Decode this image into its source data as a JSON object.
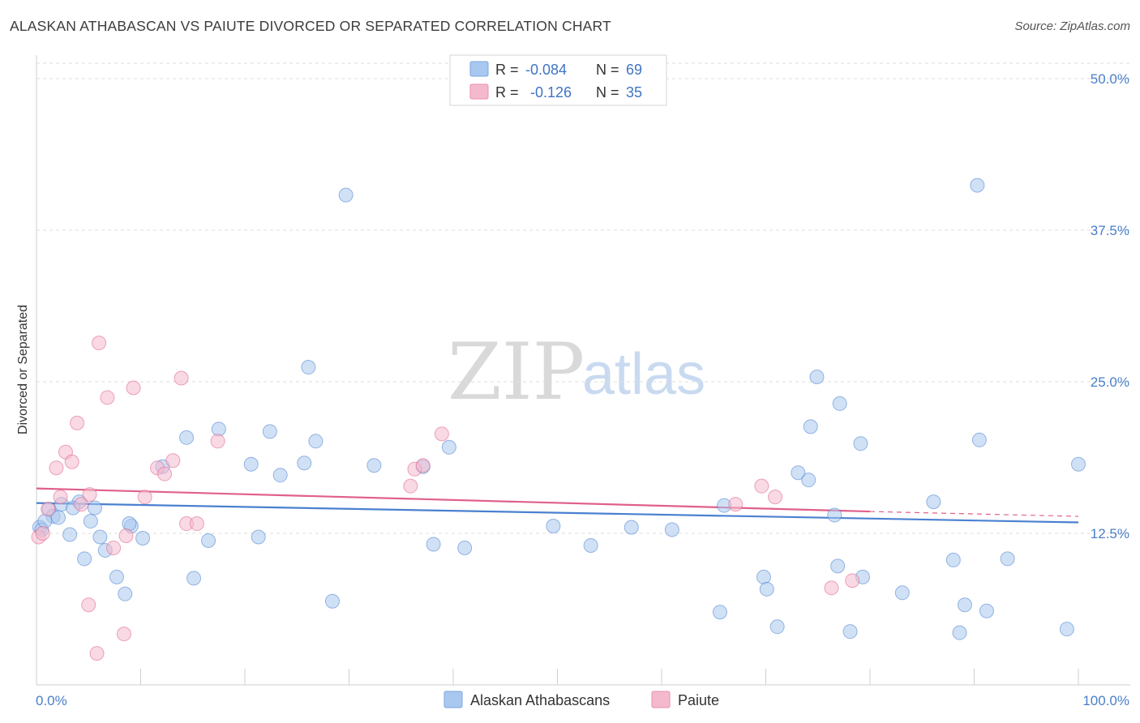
{
  "header": {
    "title": "ALASKAN ATHABASCAN VS PAIUTE DIVORCED OR SEPARATED CORRELATION CHART",
    "source": "Source: ZipAtlas.com"
  },
  "watermark": {
    "zip": "ZIP",
    "atlas": "atlas"
  },
  "legend_top": {
    "rows": [
      {
        "r_label": "R =",
        "r_value": "-0.084",
        "n_label": "N =",
        "n_value": "69",
        "color": "#a9c8ef"
      },
      {
        "r_label": "R =",
        "r_value": "-0.126",
        "n_label": "N =",
        "n_value": "35",
        "color": "#f4b9cc"
      }
    ]
  },
  "legend_bottom": {
    "items": [
      {
        "label": "Alaskan Athabascans",
        "color": "#a9c8ef"
      },
      {
        "label": "Paiute",
        "color": "#f4b9cc"
      }
    ]
  },
  "chart_data": {
    "type": "scatter",
    "title": "ALASKAN ATHABASCAN VS PAIUTE DIVORCED OR SEPARATED CORRELATION CHART",
    "xlabel": "",
    "ylabel": "Divorced or Separated",
    "xlim": [
      0,
      100
    ],
    "ylim": [
      0,
      50
    ],
    "x_tick_labels": [
      "0.0%",
      "100.0%"
    ],
    "y_ticks": [
      12.5,
      25.0,
      37.5,
      50.0
    ],
    "y_tick_labels": [
      "12.5%",
      "25.0%",
      "37.5%",
      "50.0%"
    ],
    "grid": true,
    "series": [
      {
        "name": "Alaskan Athabascans",
        "color": "#4a80d0",
        "fill": "#a9c8ef",
        "r": -0.084,
        "n": 69,
        "trend": {
          "x0": 0,
          "y0": 15.0,
          "x1": 100,
          "y1": 13.4
        },
        "points": [
          [
            0.3,
            13.0
          ],
          [
            0.5,
            12.8
          ],
          [
            1.2,
            14.5
          ],
          [
            1.6,
            13.9
          ],
          [
            2.4,
            14.9
          ],
          [
            3.2,
            12.4
          ],
          [
            4.1,
            15.1
          ],
          [
            3.5,
            14.6
          ],
          [
            5.2,
            13.5
          ],
          [
            5.6,
            14.6
          ],
          [
            6.1,
            12.2
          ],
          [
            4.6,
            10.4
          ],
          [
            6.6,
            11.1
          ],
          [
            7.7,
            8.9
          ],
          [
            8.5,
            7.5
          ],
          [
            9.1,
            13.1
          ],
          [
            8.9,
            13.3
          ],
          [
            10.2,
            12.1
          ],
          [
            12.1,
            18.0
          ],
          [
            14.4,
            20.4
          ],
          [
            15.1,
            8.8
          ],
          [
            16.5,
            11.9
          ],
          [
            17.5,
            21.1
          ],
          [
            20.6,
            18.2
          ],
          [
            21.3,
            12.2
          ],
          [
            22.4,
            20.9
          ],
          [
            23.4,
            17.3
          ],
          [
            25.7,
            18.3
          ],
          [
            26.1,
            26.2
          ],
          [
            26.8,
            20.1
          ],
          [
            28.4,
            6.9
          ],
          [
            29.7,
            40.4
          ],
          [
            32.4,
            18.1
          ],
          [
            37.1,
            18.0
          ],
          [
            38.1,
            11.6
          ],
          [
            39.6,
            19.6
          ],
          [
            41.1,
            11.3
          ],
          [
            49.6,
            13.1
          ],
          [
            53.2,
            11.5
          ],
          [
            57.1,
            13.0
          ],
          [
            61.0,
            12.8
          ],
          [
            65.6,
            6.0
          ],
          [
            66.0,
            14.8
          ],
          [
            69.8,
            8.9
          ],
          [
            70.1,
            7.9
          ],
          [
            71.1,
            4.8
          ],
          [
            73.1,
            17.5
          ],
          [
            74.1,
            16.9
          ],
          [
            74.9,
            25.4
          ],
          [
            74.3,
            21.3
          ],
          [
            77.1,
            23.2
          ],
          [
            76.6,
            14.0
          ],
          [
            76.9,
            9.8
          ],
          [
            78.1,
            4.4
          ],
          [
            79.3,
            8.9
          ],
          [
            79.1,
            19.9
          ],
          [
            83.1,
            7.6
          ],
          [
            86.1,
            15.1
          ],
          [
            88.0,
            10.3
          ],
          [
            88.6,
            4.3
          ],
          [
            89.1,
            6.6
          ],
          [
            90.5,
            20.2
          ],
          [
            90.3,
            41.2
          ],
          [
            91.2,
            6.1
          ],
          [
            93.2,
            10.4
          ],
          [
            98.9,
            4.6
          ],
          [
            100.0,
            18.2
          ],
          [
            0.8,
            13.5
          ],
          [
            2.1,
            13.8
          ]
        ]
      },
      {
        "name": "Paiute",
        "color": "#e0608a",
        "fill": "#f4b9cc",
        "r": -0.126,
        "n": 35,
        "trend": {
          "x0": 0,
          "y0": 16.2,
          "x1": 80,
          "y1": 14.3
        },
        "trend_dashed": {
          "x0": 80,
          "y0": 14.3,
          "x1": 100,
          "y1": 13.9
        },
        "points": [
          [
            0.2,
            12.2
          ],
          [
            0.6,
            12.5
          ],
          [
            1.1,
            14.5
          ],
          [
            1.9,
            17.9
          ],
          [
            2.3,
            15.5
          ],
          [
            2.8,
            19.2
          ],
          [
            3.4,
            18.4
          ],
          [
            3.9,
            21.6
          ],
          [
            4.3,
            14.9
          ],
          [
            5.1,
            15.7
          ],
          [
            5.0,
            6.6
          ],
          [
            5.8,
            2.6
          ],
          [
            6.0,
            28.2
          ],
          [
            6.8,
            23.7
          ],
          [
            7.4,
            11.3
          ],
          [
            8.4,
            4.2
          ],
          [
            8.6,
            12.3
          ],
          [
            9.3,
            24.5
          ],
          [
            10.4,
            15.5
          ],
          [
            11.6,
            17.9
          ],
          [
            12.3,
            17.4
          ],
          [
            13.1,
            18.5
          ],
          [
            13.9,
            25.3
          ],
          [
            14.4,
            13.3
          ],
          [
            15.4,
            13.3
          ],
          [
            17.4,
            20.1
          ],
          [
            35.9,
            16.4
          ],
          [
            36.3,
            17.8
          ],
          [
            37.1,
            18.1
          ],
          [
            38.9,
            20.7
          ],
          [
            67.1,
            14.9
          ],
          [
            69.6,
            16.4
          ],
          [
            70.9,
            15.5
          ],
          [
            76.3,
            8.0
          ],
          [
            78.3,
            8.6
          ]
        ]
      }
    ]
  }
}
